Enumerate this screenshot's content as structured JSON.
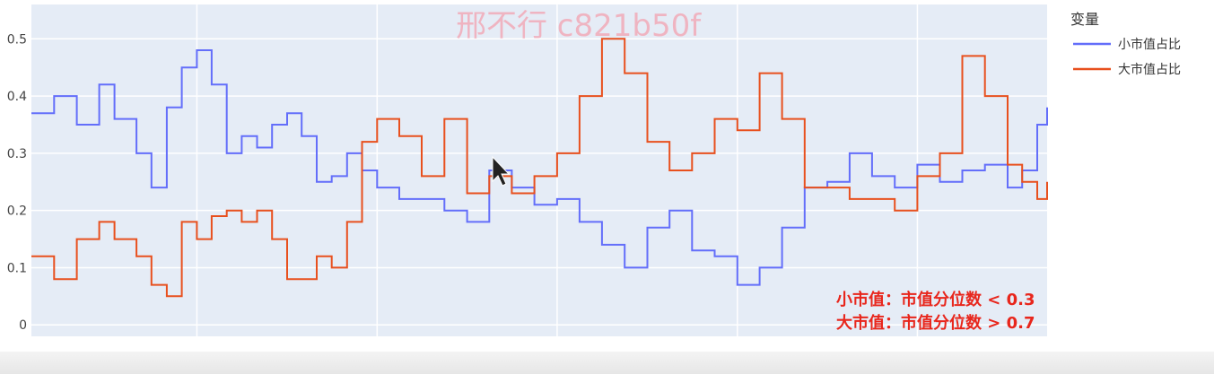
{
  "watermark": "邢不行 c821b50f",
  "chart_data": {
    "type": "line",
    "xlim": [
      "2014-03-01",
      "2025-06-10"
    ],
    "ylim": [
      -0.02,
      0.56
    ],
    "x_ticks": [
      "2016-01-01",
      "2018-01-01",
      "2020-01-01",
      "2022-01-01",
      "2024-01-01"
    ],
    "x_tick_labels": [
      "2016",
      "2018",
      "2020",
      "2022",
      "2024"
    ],
    "y_ticks": [
      0,
      0.1,
      0.2,
      0.3,
      0.4,
      0.5
    ],
    "y_tick_labels": [
      "0",
      "0.1",
      "0.2",
      "0.3",
      "0.4",
      "0.5"
    ],
    "grid": true,
    "legend": {
      "title": "变量",
      "position": "top-right"
    },
    "series": [
      {
        "name": "小市值占比",
        "color": "#636efa",
        "points": [
          [
            "2014-03-01",
            0.37
          ],
          [
            "2014-06-01",
            0.4
          ],
          [
            "2014-09-01",
            0.35
          ],
          [
            "2014-12-01",
            0.42
          ],
          [
            "2015-02-01",
            0.36
          ],
          [
            "2015-05-01",
            0.3
          ],
          [
            "2015-07-01",
            0.24
          ],
          [
            "2015-09-01",
            0.38
          ],
          [
            "2015-11-01",
            0.45
          ],
          [
            "2016-01-01",
            0.48
          ],
          [
            "2016-03-01",
            0.42
          ],
          [
            "2016-05-01",
            0.3
          ],
          [
            "2016-07-01",
            0.33
          ],
          [
            "2016-09-01",
            0.31
          ],
          [
            "2016-11-01",
            0.35
          ],
          [
            "2017-01-01",
            0.37
          ],
          [
            "2017-03-01",
            0.33
          ],
          [
            "2017-05-01",
            0.25
          ],
          [
            "2017-07-01",
            0.26
          ],
          [
            "2017-09-01",
            0.3
          ],
          [
            "2017-11-01",
            0.27
          ],
          [
            "2018-01-01",
            0.24
          ],
          [
            "2018-04-01",
            0.22
          ],
          [
            "2018-07-01",
            0.22
          ],
          [
            "2018-10-01",
            0.2
          ],
          [
            "2019-01-01",
            0.18
          ],
          [
            "2019-04-01",
            0.27
          ],
          [
            "2019-07-01",
            0.24
          ],
          [
            "2019-10-01",
            0.21
          ],
          [
            "2020-01-01",
            0.22
          ],
          [
            "2020-04-01",
            0.18
          ],
          [
            "2020-07-01",
            0.14
          ],
          [
            "2020-10-01",
            0.1
          ],
          [
            "2021-01-01",
            0.17
          ],
          [
            "2021-04-01",
            0.2
          ],
          [
            "2021-07-01",
            0.13
          ],
          [
            "2021-10-01",
            0.12
          ],
          [
            "2022-01-01",
            0.07
          ],
          [
            "2022-04-01",
            0.1
          ],
          [
            "2022-07-01",
            0.17
          ],
          [
            "2022-10-01",
            0.24
          ],
          [
            "2023-01-01",
            0.25
          ],
          [
            "2023-04-01",
            0.3
          ],
          [
            "2023-07-01",
            0.26
          ],
          [
            "2023-10-01",
            0.24
          ],
          [
            "2024-01-01",
            0.28
          ],
          [
            "2024-04-01",
            0.25
          ],
          [
            "2024-07-01",
            0.27
          ],
          [
            "2024-10-01",
            0.28
          ],
          [
            "2025-01-01",
            0.24
          ],
          [
            "2025-03-01",
            0.27
          ],
          [
            "2025-05-01",
            0.35
          ],
          [
            "2025-06-10",
            0.38
          ]
        ]
      },
      {
        "name": "大市值占比",
        "color": "#e8501e",
        "points": [
          [
            "2014-03-01",
            0.12
          ],
          [
            "2014-06-01",
            0.08
          ],
          [
            "2014-09-01",
            0.15
          ],
          [
            "2014-12-01",
            0.18
          ],
          [
            "2015-02-01",
            0.15
          ],
          [
            "2015-05-01",
            0.12
          ],
          [
            "2015-07-01",
            0.07
          ],
          [
            "2015-09-01",
            0.05
          ],
          [
            "2015-11-01",
            0.18
          ],
          [
            "2016-01-01",
            0.15
          ],
          [
            "2016-03-01",
            0.19
          ],
          [
            "2016-05-01",
            0.2
          ],
          [
            "2016-07-01",
            0.18
          ],
          [
            "2016-09-01",
            0.2
          ],
          [
            "2016-11-01",
            0.15
          ],
          [
            "2017-01-01",
            0.08
          ],
          [
            "2017-03-01",
            0.08
          ],
          [
            "2017-05-01",
            0.12
          ],
          [
            "2017-07-01",
            0.1
          ],
          [
            "2017-09-01",
            0.18
          ],
          [
            "2017-11-01",
            0.32
          ],
          [
            "2018-01-01",
            0.36
          ],
          [
            "2018-04-01",
            0.33
          ],
          [
            "2018-07-01",
            0.26
          ],
          [
            "2018-10-01",
            0.36
          ],
          [
            "2019-01-01",
            0.23
          ],
          [
            "2019-04-01",
            0.26
          ],
          [
            "2019-07-01",
            0.23
          ],
          [
            "2019-10-01",
            0.26
          ],
          [
            "2020-01-01",
            0.3
          ],
          [
            "2020-04-01",
            0.4
          ],
          [
            "2020-07-01",
            0.5
          ],
          [
            "2020-10-01",
            0.44
          ],
          [
            "2021-01-01",
            0.32
          ],
          [
            "2021-04-01",
            0.27
          ],
          [
            "2021-07-01",
            0.3
          ],
          [
            "2021-10-01",
            0.36
          ],
          [
            "2022-01-01",
            0.34
          ],
          [
            "2022-04-01",
            0.44
          ],
          [
            "2022-07-01",
            0.36
          ],
          [
            "2022-10-01",
            0.24
          ],
          [
            "2023-01-01",
            0.24
          ],
          [
            "2023-04-01",
            0.22
          ],
          [
            "2023-07-01",
            0.22
          ],
          [
            "2023-10-01",
            0.2
          ],
          [
            "2024-01-01",
            0.26
          ],
          [
            "2024-04-01",
            0.3
          ],
          [
            "2024-07-01",
            0.47
          ],
          [
            "2024-10-01",
            0.4
          ],
          [
            "2025-01-01",
            0.28
          ],
          [
            "2025-03-01",
            0.25
          ],
          [
            "2025-05-01",
            0.22
          ],
          [
            "2025-06-10",
            0.25
          ]
        ]
      }
    ],
    "annotations": [
      "小市值：市值分位数 < 0.3",
      "大市值：市值分位数 > 0.7"
    ]
  }
}
